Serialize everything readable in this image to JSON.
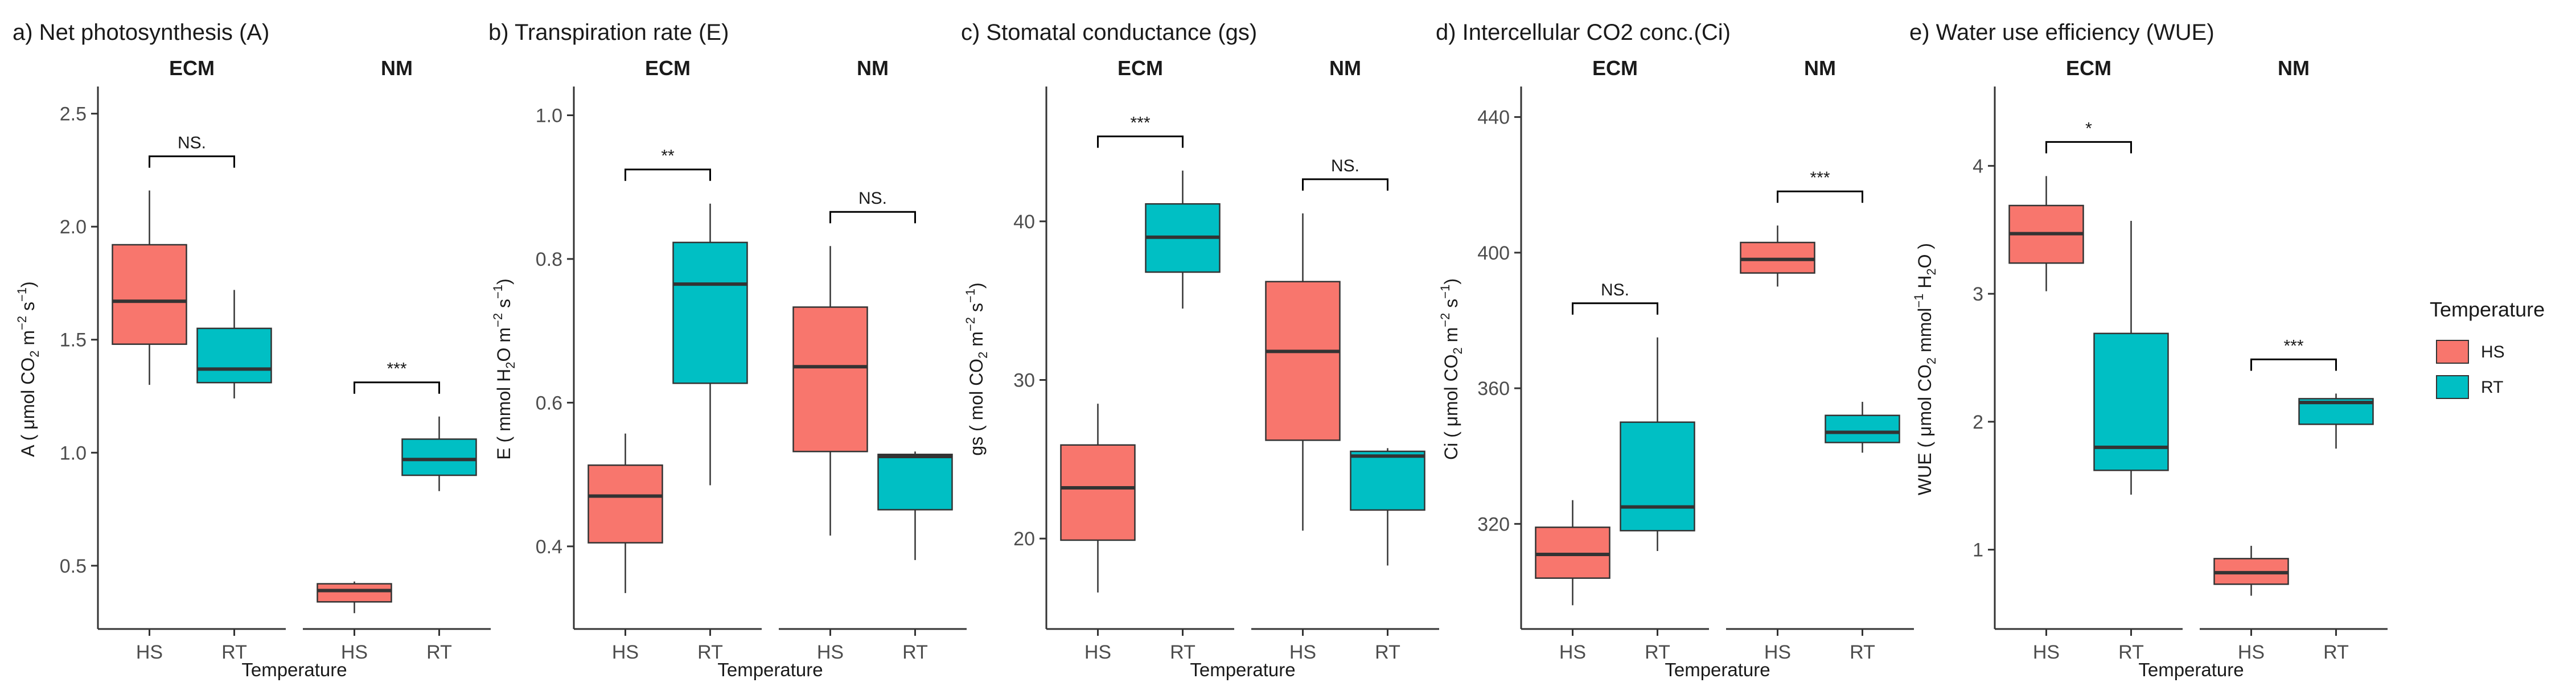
{
  "figure_title": "",
  "colors": {
    "HS": "#F8766D",
    "RT": "#00BFC4",
    "axis": "#333333",
    "median": "#333333"
  },
  "legend": {
    "title": "Temperature",
    "position": "right",
    "items": [
      {
        "label": "HS",
        "color": "#F8766D"
      },
      {
        "label": "RT",
        "color": "#00BFC4"
      }
    ]
  },
  "chart_data": [
    {
      "type": "box",
      "title": "a) Net photosynthesis (A)",
      "xlabel": "Temperature",
      "ylabel_parts": {
        "base": "A ( μmol CO",
        "sub1": "2",
        "mid": " m",
        "sup1": "−2",
        "mid2": " s",
        "sup2": "−1",
        "end": ")"
      },
      "ylim": [
        0.22,
        2.62
      ],
      "yticks": [
        0.5,
        1.0,
        1.5,
        2.0,
        2.5
      ],
      "ytick_labels": [
        "0.5",
        "1.0",
        "1.5",
        "2.0",
        "2.5"
      ],
      "facets": [
        {
          "label": "ECM",
          "significance": "NS.",
          "boxes": [
            {
              "group": "HS",
              "whisker_low": 1.3,
              "q1": 1.48,
              "median": 1.67,
              "q3": 1.92,
              "whisker_high": 2.16
            },
            {
              "group": "RT",
              "whisker_low": 1.24,
              "q1": 1.31,
              "median": 1.37,
              "q3": 1.55,
              "whisker_high": 1.72
            }
          ]
        },
        {
          "label": "NM",
          "significance": "***",
          "boxes": [
            {
              "group": "HS",
              "whisker_low": 0.29,
              "q1": 0.34,
              "median": 0.39,
              "q3": 0.42,
              "whisker_high": 0.43
            },
            {
              "group": "RT",
              "whisker_low": 0.83,
              "q1": 0.9,
              "median": 0.97,
              "q3": 1.06,
              "whisker_high": 1.16
            }
          ]
        }
      ]
    },
    {
      "type": "box",
      "title": "b) Transpiration rate (E)",
      "xlabel": "Temperature",
      "ylabel_parts": {
        "base": "E ( mmol H",
        "sub1": "2",
        "mid": "O m",
        "sup1": "−2",
        "mid2": " s",
        "sup2": "−1",
        "end": ")"
      },
      "ylim": [
        0.285,
        1.04
      ],
      "yticks": [
        0.4,
        0.6,
        0.8,
        1.0
      ],
      "ytick_labels": [
        "0.4",
        "0.6",
        "0.8",
        "1.0"
      ],
      "facets": [
        {
          "label": "ECM",
          "significance": "**",
          "boxes": [
            {
              "group": "HS",
              "whisker_low": 0.335,
              "q1": 0.405,
              "median": 0.47,
              "q3": 0.513,
              "whisker_high": 0.557
            },
            {
              "group": "RT",
              "whisker_low": 0.485,
              "q1": 0.627,
              "median": 0.765,
              "q3": 0.823,
              "whisker_high": 0.877
            }
          ]
        },
        {
          "label": "NM",
          "significance": "NS.",
          "boxes": [
            {
              "group": "HS",
              "whisker_low": 0.415,
              "q1": 0.532,
              "median": 0.65,
              "q3": 0.733,
              "whisker_high": 0.818
            },
            {
              "group": "RT",
              "whisker_low": 0.381,
              "q1": 0.451,
              "median": 0.525,
              "q3": 0.528,
              "whisker_high": 0.532
            }
          ]
        }
      ]
    },
    {
      "type": "box",
      "title": "c) Stomatal conductance (gs)",
      "xlabel": "Temperature",
      "ylabel_parts": {
        "base": "gs ( mol CO",
        "sub1": "2",
        "mid": " m",
        "sup1": "−2",
        "mid2": " s",
        "sup2": "−1",
        "end": ")"
      },
      "ylim": [
        14.3,
        48.5
      ],
      "yticks": [
        20,
        30,
        40
      ],
      "ytick_labels": [
        "20",
        "30",
        "40"
      ],
      "facets": [
        {
          "label": "ECM",
          "significance": "***",
          "boxes": [
            {
              "group": "HS",
              "whisker_low": 16.6,
              "q1": 19.9,
              "median": 23.2,
              "q3": 25.9,
              "whisker_high": 28.5
            },
            {
              "group": "RT",
              "whisker_low": 34.5,
              "q1": 36.8,
              "median": 39.0,
              "q3": 41.1,
              "whisker_high": 43.2
            }
          ]
        },
        {
          "label": "NM",
          "significance": "NS.",
          "boxes": [
            {
              "group": "HS",
              "whisker_low": 20.5,
              "q1": 26.2,
              "median": 31.8,
              "q3": 36.2,
              "whisker_high": 40.5
            },
            {
              "group": "RT",
              "whisker_low": 18.3,
              "q1": 21.8,
              "median": 25.2,
              "q3": 25.5,
              "whisker_high": 25.7
            }
          ]
        }
      ]
    },
    {
      "type": "box",
      "title": "d) Intercellular CO2 conc.(Ci)",
      "xlabel": "Temperature",
      "ylabel_parts": {
        "base": "Ci ( μmol CO",
        "sub1": "2",
        "mid": " m",
        "sup1": "−2",
        "mid2": " s",
        "sup2": "−1",
        "end": ")"
      },
      "ylim": [
        289,
        449
      ],
      "yticks": [
        320,
        360,
        400,
        440
      ],
      "ytick_labels": [
        "320",
        "360",
        "400",
        "440"
      ],
      "facets": [
        {
          "label": "ECM",
          "significance": "NS.",
          "boxes": [
            {
              "group": "HS",
              "whisker_low": 296,
              "q1": 304,
              "median": 311,
              "q3": 319,
              "whisker_high": 327
            },
            {
              "group": "RT",
              "whisker_low": 312,
              "q1": 318,
              "median": 325,
              "q3": 350,
              "whisker_high": 375
            }
          ]
        },
        {
          "label": "NM",
          "significance": "***",
          "boxes": [
            {
              "group": "HS",
              "whisker_low": 390,
              "q1": 394,
              "median": 398,
              "q3": 403,
              "whisker_high": 408
            },
            {
              "group": "RT",
              "whisker_low": 341,
              "q1": 344,
              "median": 347,
              "q3": 352,
              "whisker_high": 356
            }
          ]
        }
      ]
    },
    {
      "type": "box",
      "title": "e) Water use efficiency (WUE)",
      "xlabel": "Temperature",
      "ylabel_parts": {
        "base": "WUE ( μmol CO",
        "sub1": "2",
        "mid": " mmol",
        "sup1": "−1",
        "mid2": " H",
        "sub2": "2",
        "end": "O )"
      },
      "ylim": [
        0.38,
        4.62
      ],
      "yticks": [
        1,
        2,
        3,
        4
      ],
      "ytick_labels": [
        "1",
        "2",
        "3",
        "4"
      ],
      "facets": [
        {
          "label": "ECM",
          "significance": "*",
          "boxes": [
            {
              "group": "HS",
              "whisker_low": 3.02,
              "q1": 3.24,
              "median": 3.47,
              "q3": 3.69,
              "whisker_high": 3.92
            },
            {
              "group": "RT",
              "whisker_low": 1.43,
              "q1": 1.62,
              "median": 1.8,
              "q3": 2.69,
              "whisker_high": 3.57
            }
          ]
        },
        {
          "label": "NM",
          "significance": "***",
          "boxes": [
            {
              "group": "HS",
              "whisker_low": 0.64,
              "q1": 0.73,
              "median": 0.82,
              "q3": 0.93,
              "whisker_high": 1.03
            },
            {
              "group": "RT",
              "whisker_low": 1.79,
              "q1": 1.98,
              "median": 2.15,
              "q3": 2.18,
              "whisker_high": 2.22
            }
          ]
        }
      ]
    }
  ]
}
